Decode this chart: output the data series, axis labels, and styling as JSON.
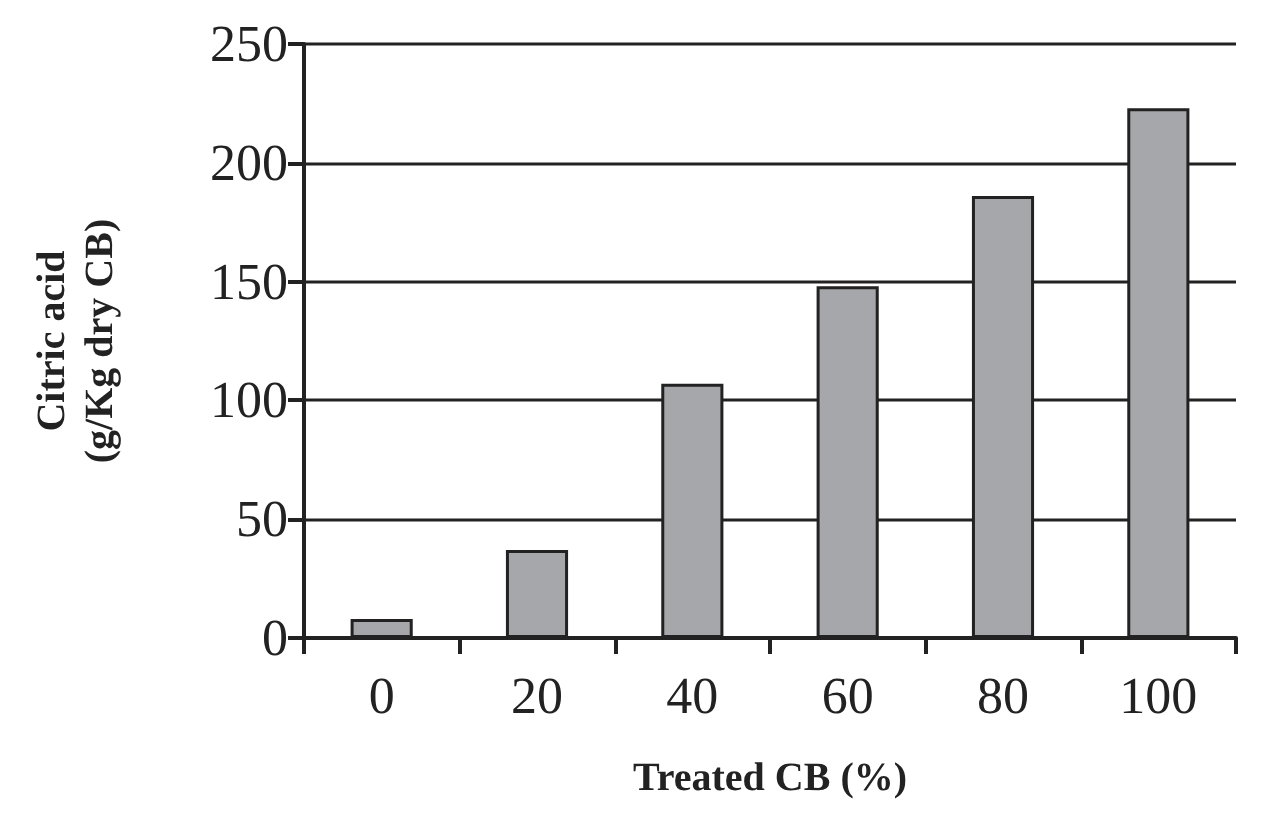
{
  "chart_data": {
    "type": "bar",
    "xlabel": "Treated CB (%)",
    "ylabel": "Citric acid\n(g/Kg dry CB)",
    "categories": [
      "0",
      "20",
      "40",
      "60",
      "80",
      "100"
    ],
    "values": [
      8,
      37,
      107,
      148,
      186,
      223
    ],
    "color": "#a6a7aa",
    "ylim": [
      0,
      250
    ],
    "yticks": [
      0,
      50,
      100,
      150,
      200,
      250
    ],
    "grid": "y"
  }
}
